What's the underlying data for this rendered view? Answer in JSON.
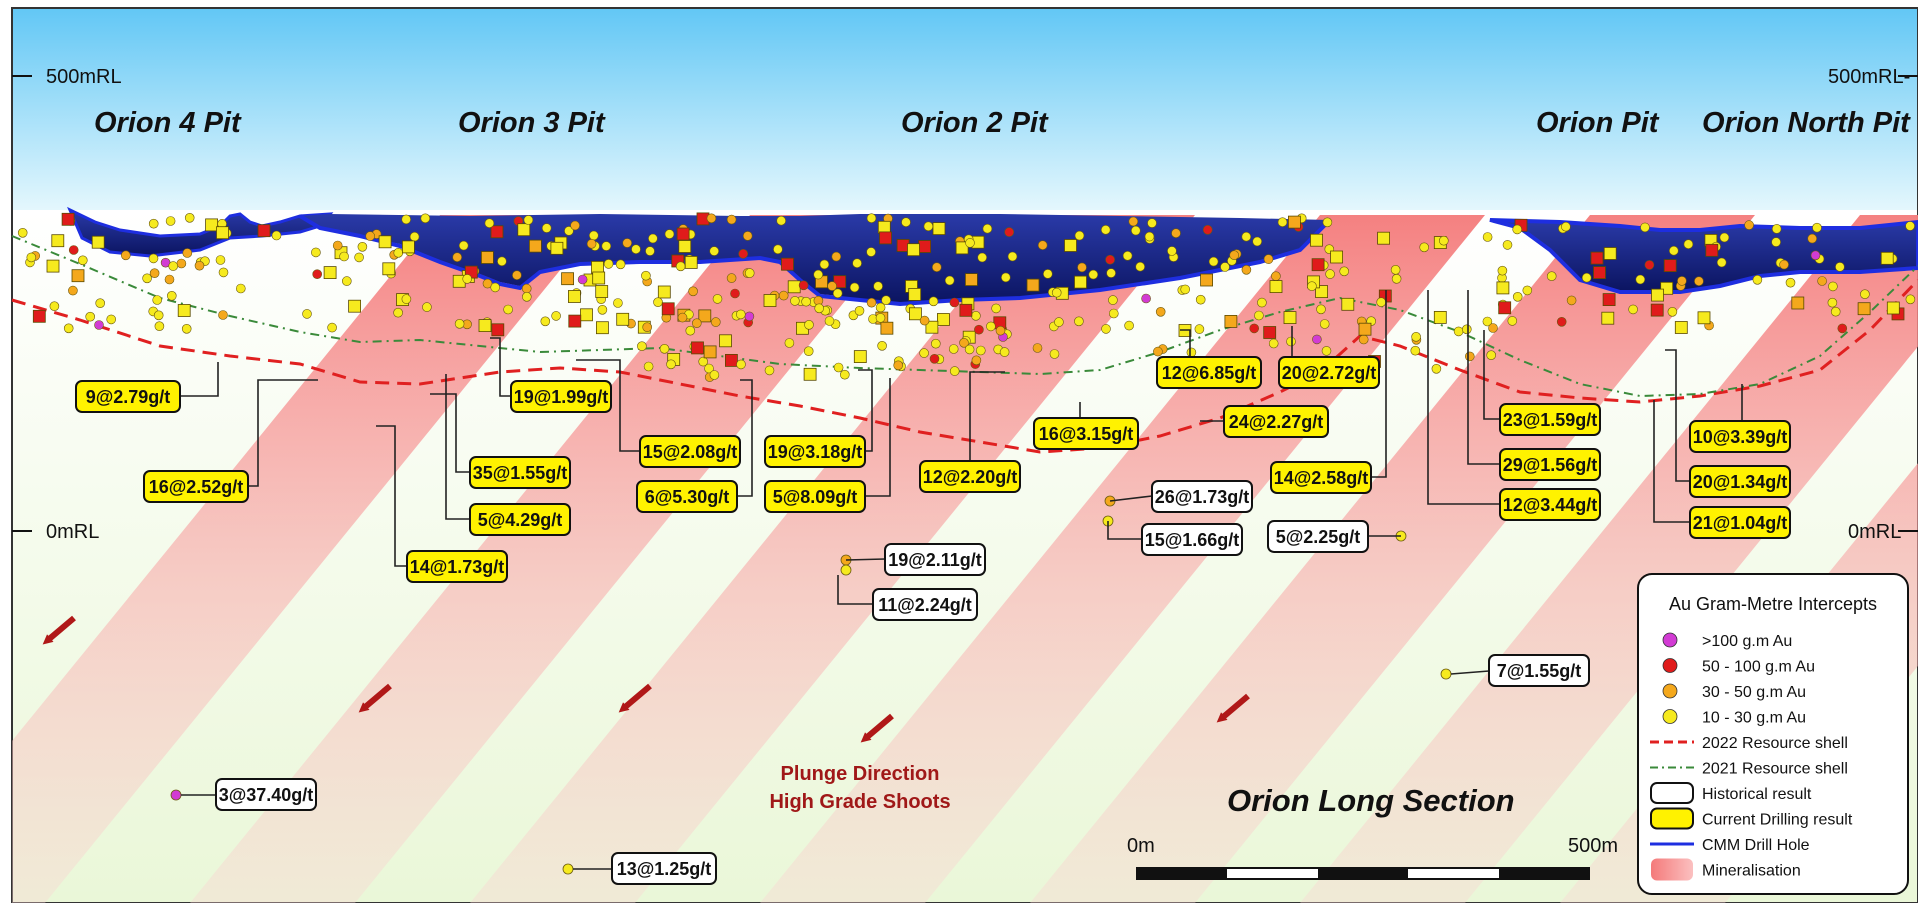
{
  "section_title": "Orion Long Section",
  "elevation_labels": {
    "top_left": "500mRL",
    "top_right": "500mRL-",
    "middle_left": "0mRL",
    "middle_right": "0mRL"
  },
  "pits": [
    {
      "id": "orion-4",
      "label": "Orion 4 Pit"
    },
    {
      "id": "orion-3",
      "label": "Orion 3 Pit"
    },
    {
      "id": "orion-2",
      "label": "Orion 2 Pit"
    },
    {
      "id": "orion",
      "label": "Orion Pit"
    },
    {
      "id": "orion-north",
      "label": "Orion North Pit"
    }
  ],
  "intercepts": {
    "current": [
      {
        "id": "i01",
        "label": "9@2.79g/t"
      },
      {
        "id": "i02",
        "label": "16@2.52g/t"
      },
      {
        "id": "i03",
        "label": "14@1.73g/t"
      },
      {
        "id": "i04",
        "label": "35@1.55g/t"
      },
      {
        "id": "i05",
        "label": "5@4.29g/t"
      },
      {
        "id": "i06",
        "label": "19@1.99g/t"
      },
      {
        "id": "i07",
        "label": "15@2.08g/t"
      },
      {
        "id": "i08",
        "label": "6@5.30g/t"
      },
      {
        "id": "i09",
        "label": "19@3.18g/t"
      },
      {
        "id": "i10",
        "label": "5@8.09g/t"
      },
      {
        "id": "i11",
        "label": "12@2.20g/t"
      },
      {
        "id": "i12",
        "label": "16@3.15g/t"
      },
      {
        "id": "i13",
        "label": "12@6.85g/t"
      },
      {
        "id": "i14",
        "label": "20@2.72g/t"
      },
      {
        "id": "i15",
        "label": "24@2.27g/t"
      },
      {
        "id": "i16",
        "label": "14@2.58g/t"
      },
      {
        "id": "i17",
        "label": "23@1.59g/t"
      },
      {
        "id": "i18",
        "label": "29@1.56g/t"
      },
      {
        "id": "i19",
        "label": "12@3.44g/t"
      },
      {
        "id": "i20",
        "label": "10@3.39g/t"
      },
      {
        "id": "i21",
        "label": "20@1.34g/t"
      },
      {
        "id": "i22",
        "label": "21@1.04g/t"
      }
    ],
    "historical": [
      {
        "id": "h01",
        "label": "26@1.73g/t"
      },
      {
        "id": "h02",
        "label": "15@1.66g/t"
      },
      {
        "id": "h03",
        "label": "5@2.25g/t"
      },
      {
        "id": "h04",
        "label": "19@2.11g/t"
      },
      {
        "id": "h05",
        "label": "11@2.24g/t"
      },
      {
        "id": "h06",
        "label": "7@1.55g/t"
      },
      {
        "id": "h07",
        "label": "3@37.40g/t"
      },
      {
        "id": "h08",
        "label": "13@1.25g/t"
      }
    ]
  },
  "plunge_label": {
    "line1": "Plunge Direction",
    "line2": "High Grade Shoots"
  },
  "scale_bar": {
    "start_label": "0m",
    "end_label": "500m"
  },
  "legend": {
    "title": "Au Gram-Metre Intercepts",
    "items": [
      {
        "id": "gt100",
        "symbol": "circle",
        "color": "#d23bd4",
        "label": ">100 g.m Au"
      },
      {
        "id": "50-100",
        "symbol": "circle",
        "color": "#e01b1b",
        "label": "50 - 100 g.m Au"
      },
      {
        "id": "30-50",
        "symbol": "circle",
        "color": "#f4a81c",
        "label": "30 - 50 g.m Au"
      },
      {
        "id": "10-30",
        "symbol": "circle",
        "color": "#f6ea1e",
        "label": "10 - 30 g.m Au"
      },
      {
        "id": "shell-2022",
        "symbol": "dashed-red",
        "color": "#e02020",
        "label": "2022 Resource shell"
      },
      {
        "id": "shell-2021",
        "symbol": "dashdot-green",
        "color": "#3a8a3a",
        "label": "2021 Resource shell"
      },
      {
        "id": "historical",
        "symbol": "white-box",
        "color": "#ffffff",
        "label": "Historical result"
      },
      {
        "id": "current",
        "symbol": "yellow-box",
        "color": "#fff200",
        "label": "Current Drilling result"
      },
      {
        "id": "drillhole",
        "symbol": "blue-line",
        "color": "#1e2ee0",
        "label": "CMM Drill Hole"
      },
      {
        "id": "mineralisation",
        "symbol": "pink-fill",
        "color": "#f47a7a",
        "label": "Mineralisation"
      }
    ]
  },
  "colors": {
    "sky_top": "#62c7f5",
    "sky_bottom": "#e4f7fd",
    "mineralisation": "#f47a7a",
    "plunge_text": "#a01818",
    "pit_blue": "#1e2ee0",
    "current_box": "#fff200"
  }
}
